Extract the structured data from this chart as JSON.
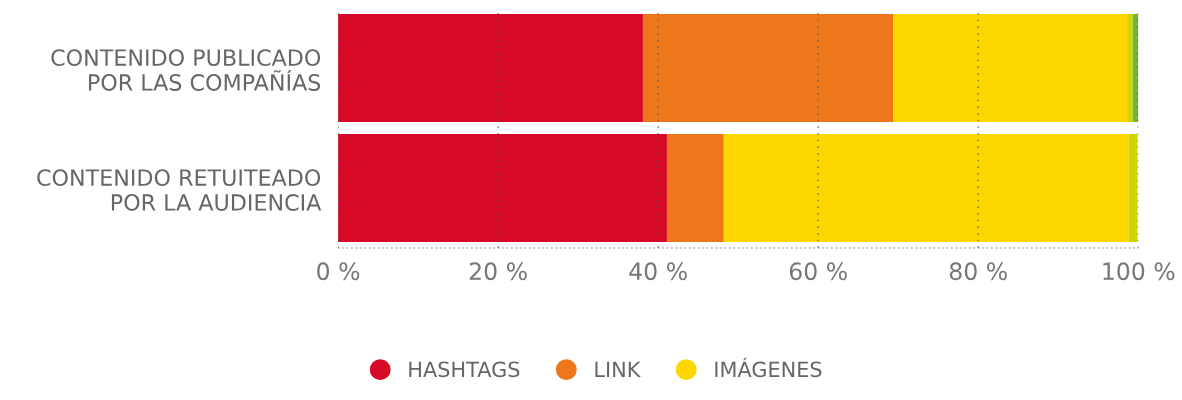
{
  "chart_data": {
    "type": "bar",
    "orientation": "horizontal",
    "stacked": true,
    "categories": [
      "CONTENIDO PUBLICADO\nPOR LAS COMPAÑÍAS",
      "CONTENIDO RETUITEADO\nPOR LA AUDIENCIA"
    ],
    "series": [
      {
        "name": "HASHTAGS",
        "color": "#d60a27",
        "values": [
          38.1,
          41.1
        ]
      },
      {
        "name": "LINK",
        "color": "#ee771b",
        "values": [
          31.3,
          7.1
        ]
      },
      {
        "name": "IMÁGENES",
        "color": "#fed600",
        "values": [
          29.2,
          50.6
        ]
      },
      {
        "color": "#d4d300",
        "values": [
          0.7,
          1.1
        ]
      },
      {
        "color": "#72b62b",
        "values": [
          0.7,
          0.0
        ]
      }
    ],
    "xlim": [
      0,
      100
    ],
    "xticks": [
      {
        "value": 0,
        "label": "0 %"
      },
      {
        "value": 20,
        "label": "20 %"
      },
      {
        "value": 40,
        "label": "40 %"
      },
      {
        "value": 60,
        "label": "60 %"
      },
      {
        "value": 80,
        "label": "80 %"
      },
      {
        "value": 100,
        "label": "100 %"
      }
    ],
    "grid": "x",
    "legend": "bottom",
    "marker": "circle"
  }
}
